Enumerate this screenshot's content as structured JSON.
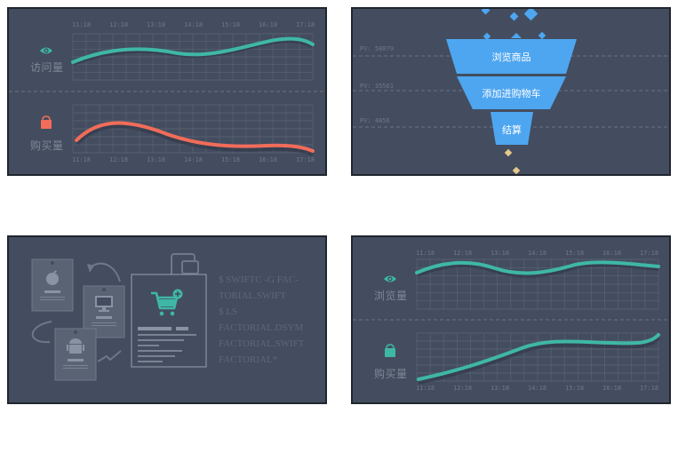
{
  "colors": {
    "panel_bg": "#434d5f",
    "teal": "#3fb7a7",
    "coral": "#f26c5a",
    "blue": "#4ea6f0",
    "gold": "#e5c98a"
  },
  "panel_traffic_a": {
    "times": [
      "11:18",
      "12:18",
      "13:18",
      "14:18",
      "15:18",
      "16:18",
      "17:18"
    ],
    "visits_label": "访问量",
    "visits_icon": "eye-icon",
    "purchase_label": "购买量",
    "purchase_icon": "shopping-bag-icon"
  },
  "panel_funnel": {
    "stages": [
      {
        "name": "浏览商品",
        "pv": "PV: 58879"
      },
      {
        "name": "添加进购物车",
        "pv": "PV: 35561"
      },
      {
        "name": "结算",
        "pv": "PV: 4856"
      }
    ]
  },
  "panel_illustration": {
    "code_lines": [
      "$ SWIFTC -G FAC-",
      "TORIAL.SWIFT",
      "$ LS",
      "FACTORIAL.DSYM",
      "FACTORIAL.SWIFT",
      "FACTORIAL*"
    ],
    "icons": [
      "apple-icon",
      "monitor-icon",
      "android-icon",
      "cart-plus-icon",
      "phone-icon",
      "arrow-icon"
    ]
  },
  "panel_traffic_b": {
    "times": [
      "11:18",
      "12:18",
      "13:18",
      "14:18",
      "15:18",
      "16:18",
      "17:18"
    ],
    "visits_label": "浏览量",
    "visits_icon": "eye-icon",
    "purchase_label": "购买量",
    "purchase_icon": "shopping-bag-icon"
  }
}
